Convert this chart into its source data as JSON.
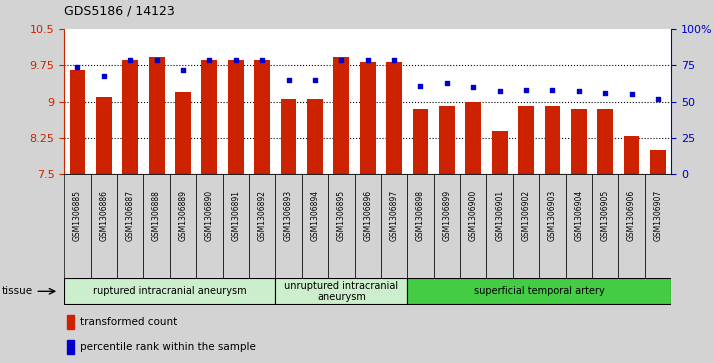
{
  "title": "GDS5186 / 14123",
  "samples": [
    "GSM1306885",
    "GSM1306886",
    "GSM1306887",
    "GSM1306888",
    "GSM1306889",
    "GSM1306890",
    "GSM1306891",
    "GSM1306892",
    "GSM1306893",
    "GSM1306894",
    "GSM1306895",
    "GSM1306896",
    "GSM1306897",
    "GSM1306898",
    "GSM1306899",
    "GSM1306900",
    "GSM1306901",
    "GSM1306902",
    "GSM1306903",
    "GSM1306904",
    "GSM1306905",
    "GSM1306906",
    "GSM1306907"
  ],
  "bar_values": [
    9.65,
    9.1,
    9.87,
    9.93,
    9.2,
    9.85,
    9.85,
    9.87,
    9.05,
    9.05,
    9.93,
    9.82,
    9.82,
    8.85,
    8.9,
    9.0,
    8.4,
    8.9,
    8.9,
    8.85,
    8.85,
    8.28,
    8.0
  ],
  "percentile_values": [
    74,
    68,
    79,
    79,
    72,
    79,
    79,
    79,
    65,
    65,
    79,
    79,
    79,
    61,
    63,
    60,
    57,
    58,
    58,
    57,
    56,
    55,
    52
  ],
  "groups": [
    {
      "label": "ruptured intracranial aneurysm",
      "start": 0,
      "end": 8
    },
    {
      "label": "unruptured intracranial\naneurysm",
      "start": 8,
      "end": 13
    },
    {
      "label": "superficial temporal artery",
      "start": 13,
      "end": 23
    }
  ],
  "group_colors": [
    "#cceecc",
    "#cceecc",
    "#44cc44"
  ],
  "bar_color": "#cc2200",
  "dot_color": "#0000cc",
  "ylim_left": [
    7.5,
    10.5
  ],
  "ylim_right": [
    0,
    100
  ],
  "yticks_left": [
    7.5,
    8.25,
    9.0,
    9.75,
    10.5
  ],
  "ytick_labels_left": [
    "7.5",
    "8.25",
    "9",
    "9.75",
    "10.5"
  ],
  "yticks_right": [
    0,
    25,
    50,
    75,
    100
  ],
  "ytick_labels_right": [
    "0",
    "25",
    "50",
    "75",
    "100%"
  ],
  "grid_values": [
    8.25,
    9.0,
    9.75
  ],
  "tissue_label": "tissue",
  "legend_bar_label": "transformed count",
  "legend_dot_label": "percentile rank within the sample",
  "bg_color": "#d3d3d3",
  "plot_bg_color": "#ffffff",
  "xtick_bg_color": "#d3d3d3"
}
